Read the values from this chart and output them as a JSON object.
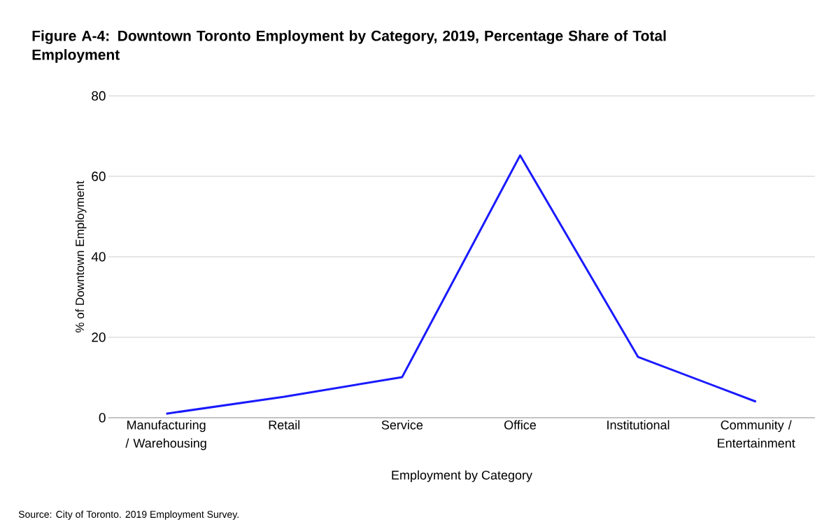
{
  "chart_data": {
    "type": "line",
    "title": "Figure A-4: Downtown Toronto Employment by Category, 2019, Percentage Share of Total Employment",
    "xlabel": "Employment by Category",
    "ylabel": "% of Downtown Employment",
    "categories": [
      "Manufacturing / Warehousing",
      "Retail",
      "Service",
      "Office",
      "Institutional",
      "Community / Entertainment"
    ],
    "series": [
      {
        "color": "#1a1aff",
        "values": [
          1.0,
          5.2,
          10.1,
          65.2,
          15.1,
          4.0
        ]
      }
    ],
    "ylim": [
      0,
      80
    ],
    "yticks": [
      0,
      20,
      40,
      60,
      80
    ],
    "grid": "y",
    "marker": "none",
    "line_style": "solid",
    "annotations": [
      "Source: City of Toronto. 2019 Employment Survey."
    ]
  }
}
